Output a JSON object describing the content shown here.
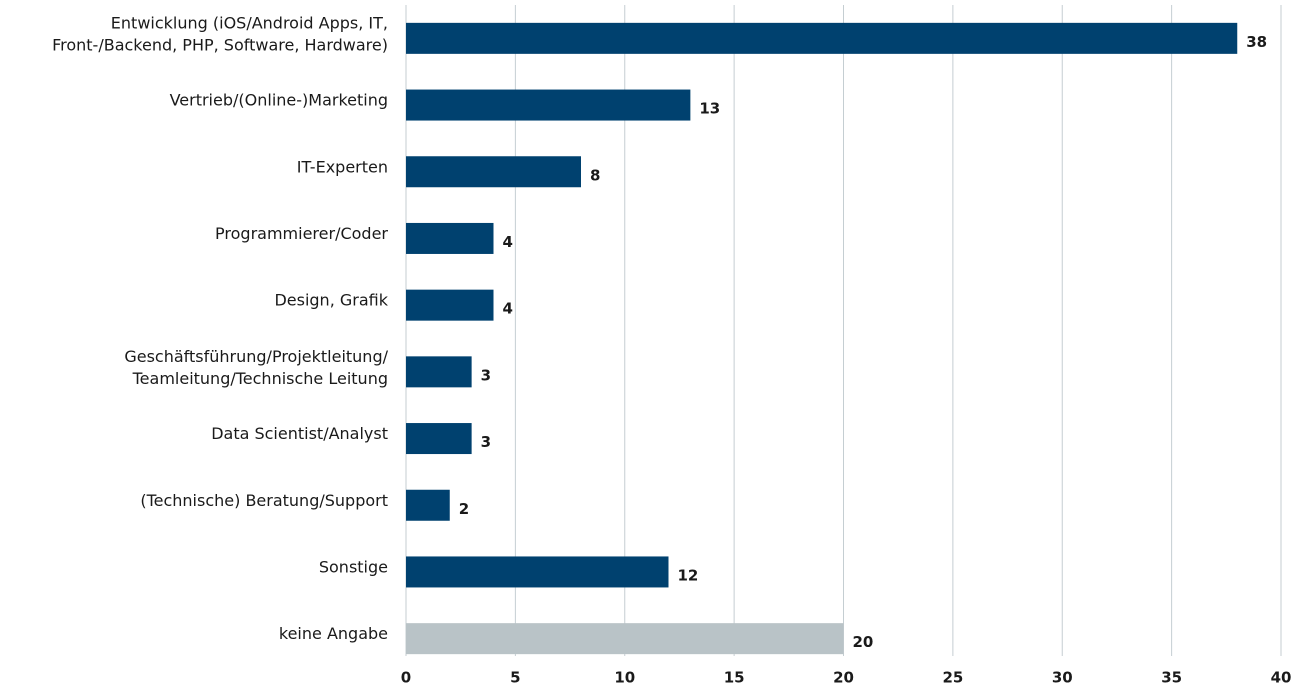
{
  "chart_data": {
    "type": "bar",
    "orientation": "horizontal",
    "categories": [
      "Entwicklung (iOS/Android Apps, IT,\nFront-/Backend, PHP, Software, Hardware)",
      "Vertrieb/(Online-)Marketing",
      "IT-Experten",
      "Programmierer/Coder",
      "Design, Grafik",
      "Geschäftsführung/Projektleitung/\nTeamleitung/Technische Leitung",
      "Data Scientist/Analyst",
      "(Technische) Beratung/Support",
      "Sonstige",
      "keine Angabe"
    ],
    "values": [
      38,
      13,
      8,
      4,
      4,
      3,
      3,
      2,
      12,
      20
    ],
    "colors": [
      "#00416f",
      "#00416f",
      "#00416f",
      "#00416f",
      "#00416f",
      "#00416f",
      "#00416f",
      "#00416f",
      "#00416f",
      "#b9c3c7"
    ],
    "xlim": [
      0,
      40
    ],
    "xticks": [
      0,
      5,
      10,
      15,
      20,
      25,
      30,
      35,
      40
    ],
    "grid": true
  }
}
